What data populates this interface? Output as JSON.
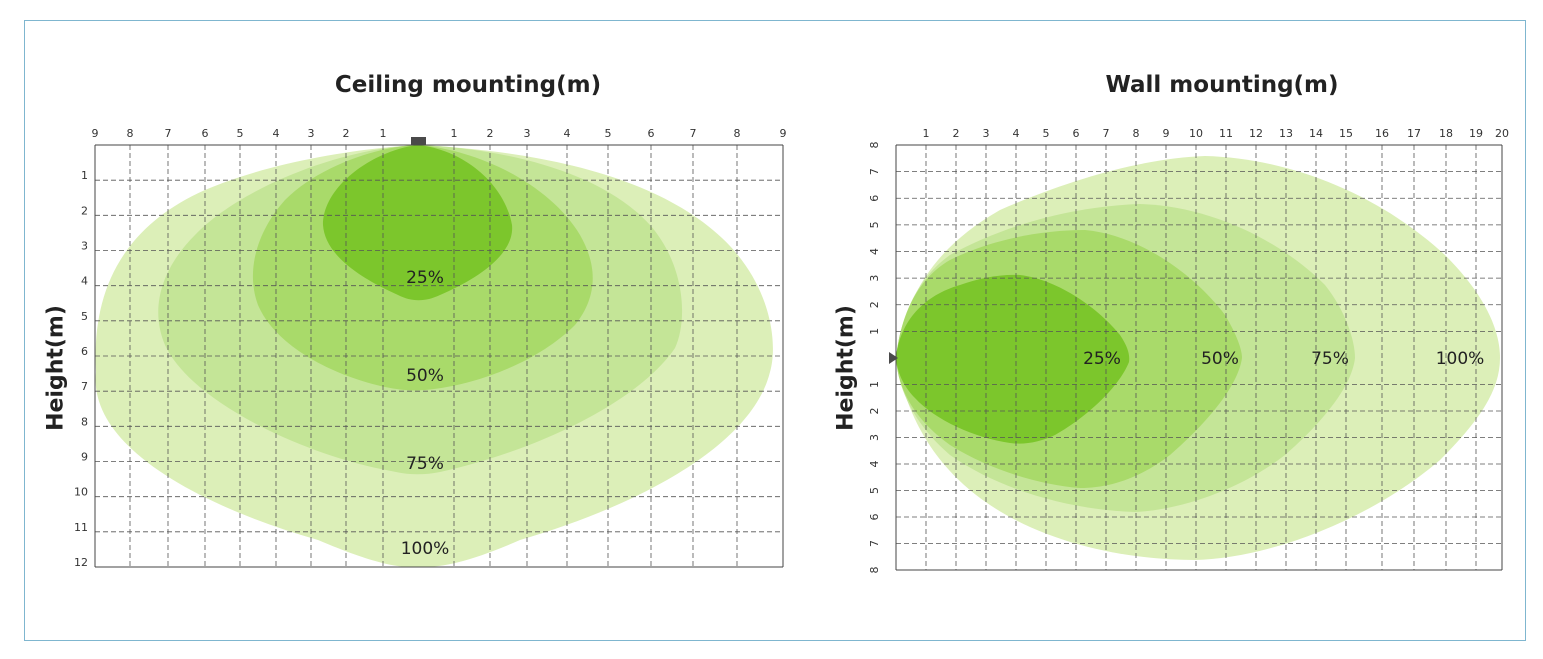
{
  "colors": {
    "frame": "#7fb6cf",
    "zone_100": "#dcefb8",
    "zone_75": "#c4e597",
    "zone_50": "#a9da6a",
    "zone_25": "#7cc62c",
    "fixture": "#4a4a4a"
  },
  "ceiling": {
    "title": "Ceiling mounting(m)",
    "ylabel": "Height(m)",
    "x_ticks": [
      "9",
      "8",
      "7",
      "6",
      "5",
      "4",
      "3",
      "2",
      "1",
      "1",
      "2",
      "3",
      "4",
      "5",
      "6",
      "7",
      "8",
      "9"
    ],
    "y_ticks": [
      "1",
      "2",
      "3",
      "4",
      "5",
      "6",
      "7",
      "8",
      "9",
      "10",
      "11",
      "12"
    ],
    "labels": [
      "25%",
      "50%",
      "75%",
      "100%"
    ]
  },
  "wall": {
    "title": "Wall mounting(m)",
    "ylabel": "Height(m)",
    "x_ticks": [
      "1",
      "2",
      "3",
      "4",
      "5",
      "6",
      "7",
      "8",
      "9",
      "10",
      "11",
      "12",
      "13",
      "14",
      "15",
      "16",
      "17",
      "18",
      "19",
      "20"
    ],
    "y_ticks_up": [
      "8",
      "7",
      "6",
      "5",
      "4",
      "3",
      "2",
      "1"
    ],
    "y_ticks_down": [
      "1",
      "2",
      "3",
      "4",
      "5",
      "6",
      "7",
      "8"
    ],
    "labels": [
      "25%",
      "50%",
      "75%",
      "100%"
    ]
  },
  "chart_data": [
    {
      "type": "area",
      "title": "Ceiling mounting(m)",
      "xlabel": "",
      "ylabel": "Height(m)",
      "xlim": [
        -9,
        9
      ],
      "ylim": [
        0,
        12
      ],
      "grid": true,
      "series": [
        {
          "name": "25%",
          "max_distance": 4.2,
          "max_half_width": 2.7
        },
        {
          "name": "50%",
          "max_distance": 6.6,
          "max_half_width": 4.6
        },
        {
          "name": "75%",
          "max_distance": 9.2,
          "max_half_width": 7.2
        },
        {
          "name": "100%",
          "max_distance": 12,
          "max_half_width": 9
        }
      ]
    },
    {
      "type": "area",
      "title": "Wall mounting(m)",
      "xlabel": "",
      "ylabel": "Height(m)",
      "xlim": [
        0,
        20
      ],
      "ylim": [
        -8,
        8
      ],
      "grid": true,
      "series": [
        {
          "name": "25%",
          "max_distance": 7.8,
          "max_half_width": 3.1
        },
        {
          "name": "50%",
          "max_distance": 11.5,
          "max_half_width": 4.9
        },
        {
          "name": "75%",
          "max_distance": 15.2,
          "max_half_width": 5.8
        },
        {
          "name": "100%",
          "max_distance": 20,
          "max_half_width": 7.6
        }
      ]
    }
  ]
}
